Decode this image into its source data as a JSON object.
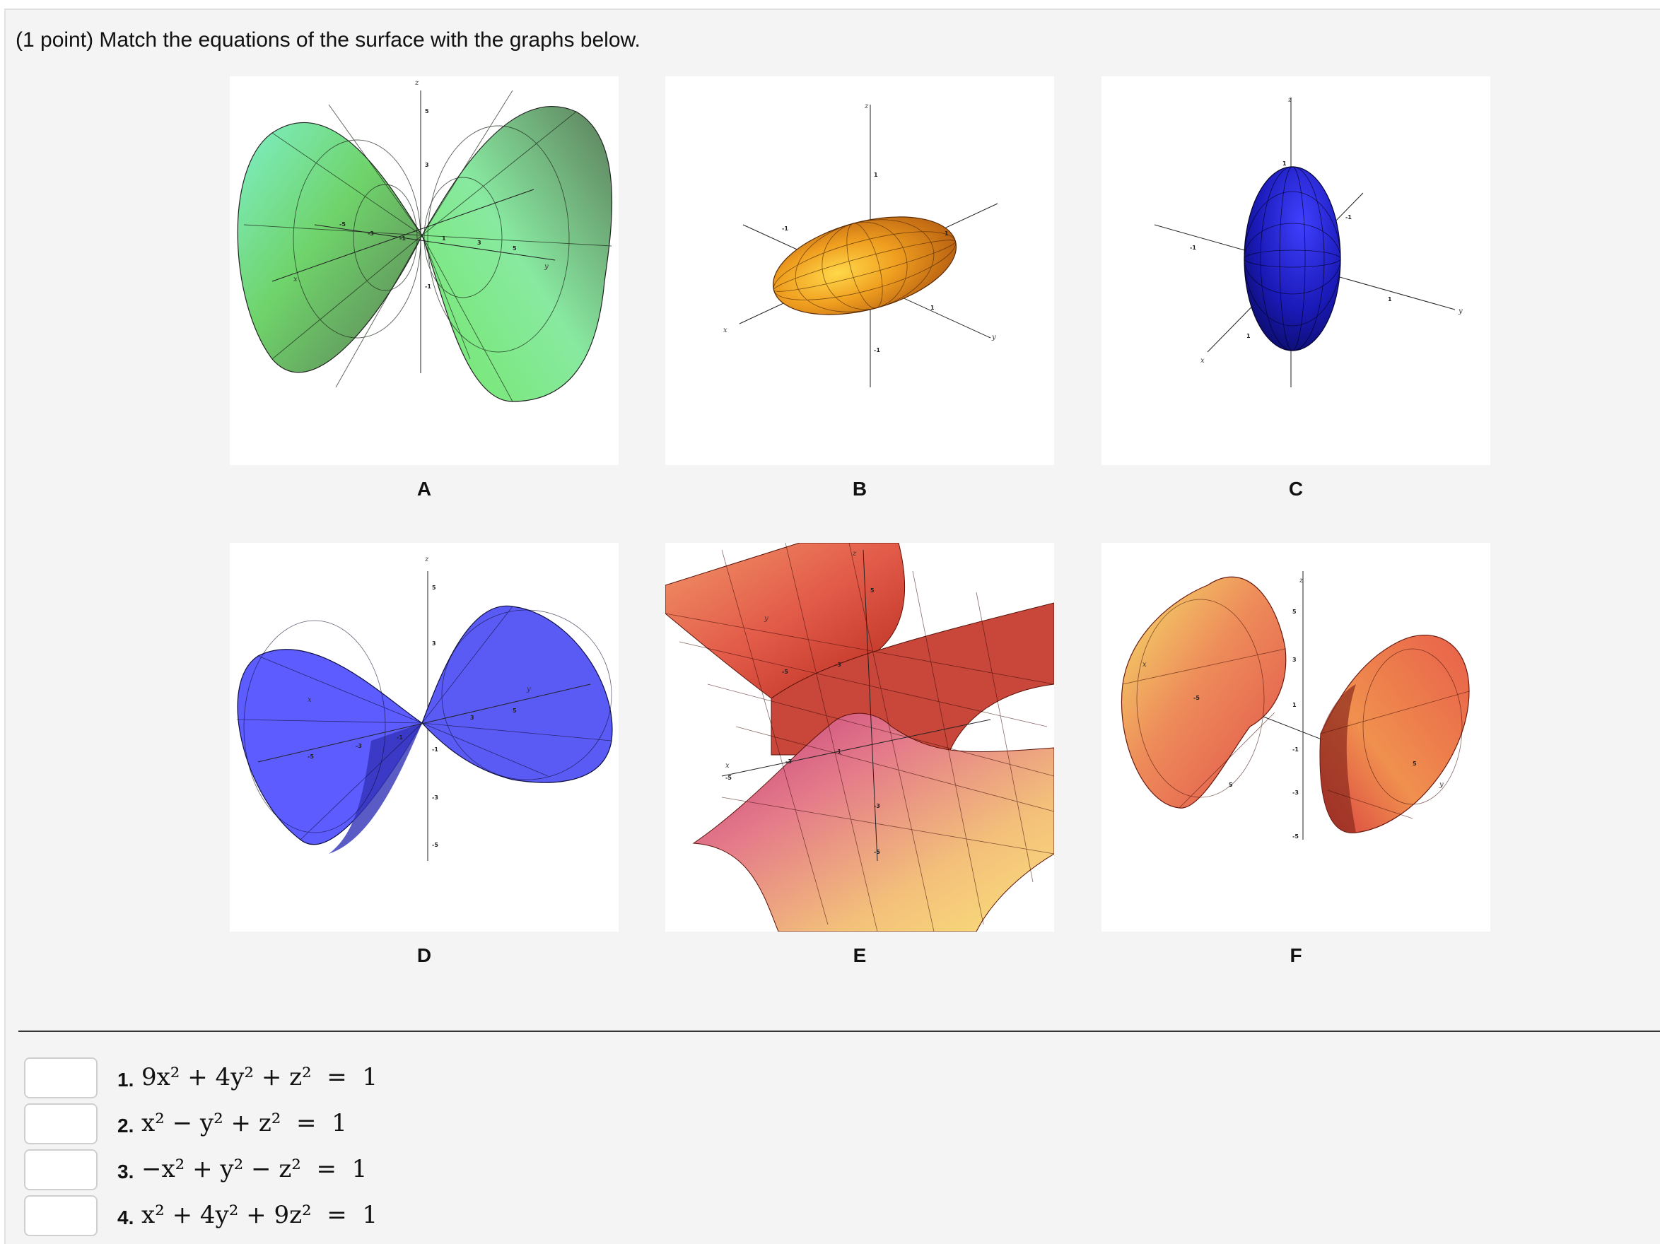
{
  "problem": {
    "prompt": "(1 point) Match the equations of the surface with the graphs below."
  },
  "figures": [
    {
      "letter": "A",
      "axes": {
        "z": "z",
        "y": "y",
        "x": "x"
      },
      "ticks": [
        "5",
        "3",
        "-5",
        "-3",
        "-1",
        "1",
        "3",
        "5",
        "-1"
      ]
    },
    {
      "letter": "B",
      "axes": {
        "z": "z",
        "y": "y",
        "x": "x"
      },
      "ticks": [
        "1",
        "-1",
        "1",
        "-1",
        "1"
      ]
    },
    {
      "letter": "C",
      "axes": {
        "z": "z",
        "y": "y",
        "x": "x"
      },
      "ticks": [
        "1",
        "-1",
        "-1",
        "1",
        "1"
      ]
    },
    {
      "letter": "D",
      "axes": {
        "z": "z",
        "y": "y",
        "x": "x"
      },
      "ticks": [
        "5",
        "3",
        "-5",
        "-3",
        "-1",
        "3",
        "5",
        "-1",
        "-3",
        "-5"
      ]
    },
    {
      "letter": "E",
      "axes": {
        "z": "z",
        "y": "y",
        "x": "x"
      },
      "ticks": [
        "5",
        "-5",
        "-3",
        "-5",
        "-3",
        "-1",
        "-3",
        "-5"
      ]
    },
    {
      "letter": "F",
      "axes": {
        "z": "z",
        "y": "y",
        "x": "x"
      },
      "ticks": [
        "5",
        "3",
        "1",
        "-1",
        "-3",
        "-5",
        "-5",
        "5",
        "5"
      ]
    }
  ],
  "answers": [
    {
      "number": "1.",
      "value": "",
      "equation": "9x² + 4y² + z²  =  1"
    },
    {
      "number": "2.",
      "value": "",
      "equation": "x² − y² + z²  =  1"
    },
    {
      "number": "3.",
      "value": "",
      "equation": "−x² + y² − z²  =  1"
    },
    {
      "number": "4.",
      "value": "",
      "equation": "x² + 4y² + 9z²  =  1"
    }
  ]
}
